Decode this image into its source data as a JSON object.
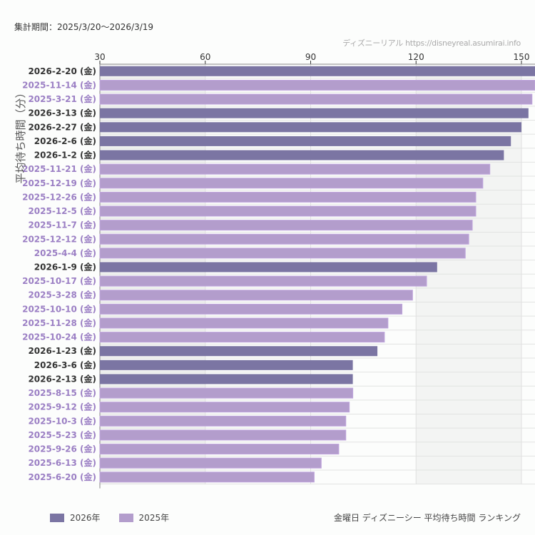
{
  "header": {
    "period": "集計期間：2025/3/20〜2026/3/19",
    "credit": "ディズニーリアル https://disneyreal.asumirai.info"
  },
  "caption": "金曜日 ディズニーシー 平均待ち時間 ランキング",
  "colors": {
    "y2026": "#7b75a3",
    "y2025": "#b39dcc",
    "label2026": "#333333",
    "label2025": "#9b7fc4",
    "band": "#f3f4f3"
  },
  "chart_data": {
    "type": "bar",
    "orientation": "horizontal",
    "ylabel": "平均待ち時間（分）",
    "xlim": [
      30,
      154
    ],
    "xticks": [
      30,
      60,
      90,
      120,
      150
    ],
    "grid": true,
    "legend_placement": "bottom-left",
    "legend": [
      {
        "name": "2026年",
        "color": "#7b75a3"
      },
      {
        "name": "2025年",
        "color": "#b39dcc"
      }
    ],
    "categories": [
      "2026-2-20 (金)",
      "2025-11-14 (金)",
      "2025-3-21 (金)",
      "2026-3-13 (金)",
      "2026-2-27 (金)",
      "2026-2-6 (金)",
      "2026-1-2 (金)",
      "2025-11-21 (金)",
      "2025-12-19 (金)",
      "2025-12-26 (金)",
      "2025-12-5 (金)",
      "2025-11-7 (金)",
      "2025-12-12 (金)",
      "2025-4-4 (金)",
      "2026-1-9 (金)",
      "2025-10-17 (金)",
      "2025-3-28 (金)",
      "2025-10-10 (金)",
      "2025-11-28 (金)",
      "2025-10-24 (金)",
      "2026-1-23 (金)",
      "2026-3-6 (金)",
      "2026-2-13 (金)",
      "2025-8-15 (金)",
      "2025-9-12 (金)",
      "2025-10-3 (金)",
      "2025-5-23 (金)",
      "2025-9-26 (金)",
      "2025-6-13 (金)",
      "2025-6-20 (金)"
    ],
    "values": [
      155,
      155,
      153,
      152,
      150,
      147,
      145,
      141,
      139,
      137,
      137,
      136,
      135,
      134,
      126,
      123,
      119,
      116,
      112,
      111,
      109,
      102,
      102,
      102,
      101,
      100,
      100,
      98,
      93,
      91
    ],
    "years": [
      2026,
      2025,
      2025,
      2026,
      2026,
      2026,
      2026,
      2025,
      2025,
      2025,
      2025,
      2025,
      2025,
      2025,
      2026,
      2025,
      2025,
      2025,
      2025,
      2025,
      2026,
      2026,
      2026,
      2025,
      2025,
      2025,
      2025,
      2025,
      2025,
      2025
    ]
  }
}
